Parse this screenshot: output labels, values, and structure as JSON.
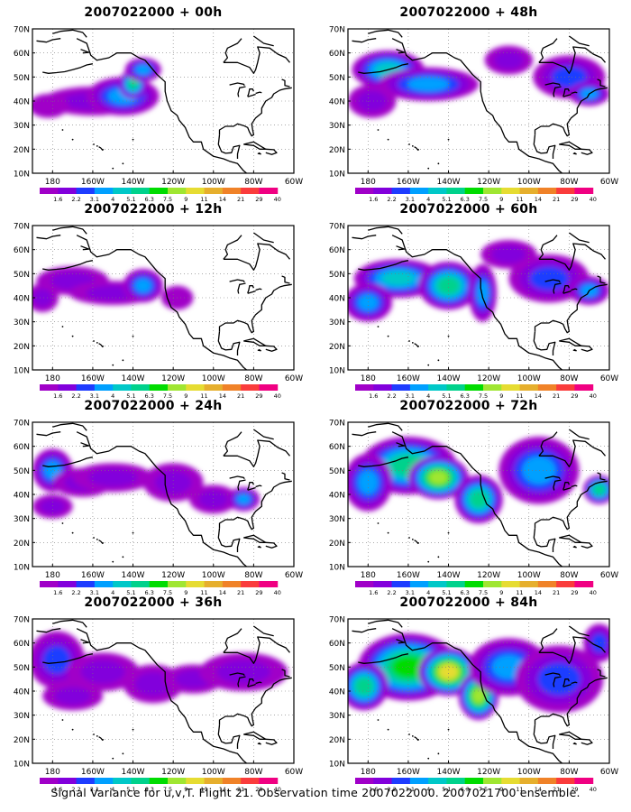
{
  "caption": "Signal Variance for u,v,T. Flight 21. Observation time 2007022000. 2007021700 ensemble.",
  "legend": {
    "labels": [
      "1.6",
      "2.2",
      "3.1",
      "4",
      "5.1",
      "6.3",
      "7.5",
      "9",
      "11",
      "14",
      "21",
      "29",
      "40"
    ],
    "colors": [
      "#a000c8",
      "#8200dc",
      "#1e3cff",
      "#00a0ff",
      "#00c8c8",
      "#00d28c",
      "#00dc00",
      "#a0e632",
      "#e6dc32",
      "#e6af2d",
      "#f08228",
      "#fa3c3c",
      "#f00082"
    ]
  },
  "chart_data": {
    "type": "heatmap",
    "variable": "Signal Variance for u,v,T",
    "x_axis": {
      "ticks": [
        "180",
        "160W",
        "140W",
        "120W",
        "100W",
        "80W",
        "60W"
      ],
      "range_deg_lon": [
        -190,
        -60
      ]
    },
    "y_axis": {
      "ticks": [
        "10N",
        "20N",
        "30N",
        "40N",
        "50N",
        "60N",
        "70N"
      ],
      "range_deg_lat": [
        10,
        70
      ]
    },
    "grid": "dotted",
    "panels": [
      {
        "title": "2007022000 + 00h",
        "lead_hours": 0,
        "blobs": [
          {
            "lon": -160,
            "lat": 40,
            "rx": 25,
            "ry": 6,
            "v": 2.5
          },
          {
            "lon": -145,
            "lat": 42,
            "rx": 18,
            "ry": 8,
            "v": 4
          },
          {
            "lon": -140,
            "lat": 47,
            "rx": 7,
            "ry": 6,
            "v": 7
          },
          {
            "lon": -135,
            "lat": 53,
            "rx": 9,
            "ry": 5,
            "v": 4
          },
          {
            "lon": -182,
            "lat": 38,
            "rx": 10,
            "ry": 5,
            "v": 2
          }
        ]
      },
      {
        "title": "2007022000 + 48h",
        "lead_hours": 48,
        "blobs": [
          {
            "lon": -170,
            "lat": 53,
            "rx": 18,
            "ry": 8,
            "v": 6
          },
          {
            "lon": -150,
            "lat": 47,
            "rx": 25,
            "ry": 7,
            "v": 5
          },
          {
            "lon": -178,
            "lat": 40,
            "rx": 12,
            "ry": 7,
            "v": 3
          },
          {
            "lon": -110,
            "lat": 57,
            "rx": 12,
            "ry": 6,
            "v": 2.5
          },
          {
            "lon": -80,
            "lat": 50,
            "rx": 18,
            "ry": 9,
            "v": 3.5
          },
          {
            "lon": -70,
            "lat": 43,
            "rx": 10,
            "ry": 5,
            "v": 4.5
          }
        ]
      },
      {
        "title": "2007022000 + 12h",
        "lead_hours": 12,
        "blobs": [
          {
            "lon": -170,
            "lat": 47,
            "rx": 18,
            "ry": 6,
            "v": 2.5
          },
          {
            "lon": -150,
            "lat": 42,
            "rx": 22,
            "ry": 5,
            "v": 2.5
          },
          {
            "lon": -135,
            "lat": 45,
            "rx": 10,
            "ry": 7,
            "v": 4
          },
          {
            "lon": -185,
            "lat": 40,
            "rx": 8,
            "ry": 6,
            "v": 3
          },
          {
            "lon": -118,
            "lat": 40,
            "rx": 8,
            "ry": 5,
            "v": 2
          }
        ]
      },
      {
        "title": "2007022000 + 60h",
        "lead_hours": 60,
        "blobs": [
          {
            "lon": -165,
            "lat": 48,
            "rx": 22,
            "ry": 8,
            "v": 6
          },
          {
            "lon": -140,
            "lat": 45,
            "rx": 15,
            "ry": 10,
            "v": 6.5
          },
          {
            "lon": -123,
            "lat": 42,
            "rx": 7,
            "ry": 12,
            "v": 5
          },
          {
            "lon": -180,
            "lat": 38,
            "rx": 12,
            "ry": 8,
            "v": 4
          },
          {
            "lon": -90,
            "lat": 48,
            "rx": 20,
            "ry": 10,
            "v": 3.5
          },
          {
            "lon": -70,
            "lat": 43,
            "rx": 10,
            "ry": 6,
            "v": 5
          },
          {
            "lon": -110,
            "lat": 58,
            "rx": 14,
            "ry": 6,
            "v": 3
          }
        ]
      },
      {
        "title": "2007022000 + 24h",
        "lead_hours": 24,
        "blobs": [
          {
            "lon": -180,
            "lat": 50,
            "rx": 10,
            "ry": 9,
            "v": 4
          },
          {
            "lon": -165,
            "lat": 45,
            "rx": 15,
            "ry": 6,
            "v": 3
          },
          {
            "lon": -150,
            "lat": 47,
            "rx": 20,
            "ry": 6,
            "v": 2.5
          },
          {
            "lon": -120,
            "lat": 45,
            "rx": 15,
            "ry": 8,
            "v": 3
          },
          {
            "lon": -100,
            "lat": 38,
            "rx": 12,
            "ry": 6,
            "v": 3
          },
          {
            "lon": -85,
            "lat": 38,
            "rx": 8,
            "ry": 5,
            "v": 4
          },
          {
            "lon": -180,
            "lat": 35,
            "rx": 10,
            "ry": 5,
            "v": 2.5
          }
        ]
      },
      {
        "title": "2007022000 + 72h",
        "lead_hours": 72,
        "blobs": [
          {
            "lon": -160,
            "lat": 52,
            "rx": 24,
            "ry": 12,
            "v": 7
          },
          {
            "lon": -145,
            "lat": 47,
            "rx": 15,
            "ry": 9,
            "v": 9
          },
          {
            "lon": -125,
            "lat": 38,
            "rx": 12,
            "ry": 10,
            "v": 6.5
          },
          {
            "lon": -180,
            "lat": 45,
            "rx": 12,
            "ry": 12,
            "v": 5
          },
          {
            "lon": -95,
            "lat": 50,
            "rx": 20,
            "ry": 14,
            "v": 4
          },
          {
            "lon": -65,
            "lat": 42,
            "rx": 8,
            "ry": 6,
            "v": 6.5
          }
        ]
      },
      {
        "title": "2007022000 + 36h",
        "lead_hours": 36,
        "blobs": [
          {
            "lon": -178,
            "lat": 53,
            "rx": 14,
            "ry": 12,
            "v": 3.5
          },
          {
            "lon": -155,
            "lat": 48,
            "rx": 18,
            "ry": 8,
            "v": 3
          },
          {
            "lon": -130,
            "lat": 43,
            "rx": 15,
            "ry": 8,
            "v": 3
          },
          {
            "lon": -110,
            "lat": 45,
            "rx": 15,
            "ry": 6,
            "v": 3
          },
          {
            "lon": -85,
            "lat": 48,
            "rx": 22,
            "ry": 8,
            "v": 2.5
          },
          {
            "lon": -170,
            "lat": 38,
            "rx": 15,
            "ry": 6,
            "v": 2.5
          }
        ]
      },
      {
        "title": "2007022000 + 84h",
        "lead_hours": 84,
        "blobs": [
          {
            "lon": -160,
            "lat": 50,
            "rx": 25,
            "ry": 14,
            "v": 8
          },
          {
            "lon": -140,
            "lat": 48,
            "rx": 15,
            "ry": 10,
            "v": 11
          },
          {
            "lon": -125,
            "lat": 38,
            "rx": 10,
            "ry": 10,
            "v": 9
          },
          {
            "lon": -182,
            "lat": 42,
            "rx": 12,
            "ry": 10,
            "v": 6.5
          },
          {
            "lon": -110,
            "lat": 50,
            "rx": 20,
            "ry": 12,
            "v": 5
          },
          {
            "lon": -85,
            "lat": 45,
            "rx": 22,
            "ry": 14,
            "v": 3.5
          },
          {
            "lon": -65,
            "lat": 60,
            "rx": 8,
            "ry": 8,
            "v": 3.5
          }
        ]
      }
    ]
  }
}
